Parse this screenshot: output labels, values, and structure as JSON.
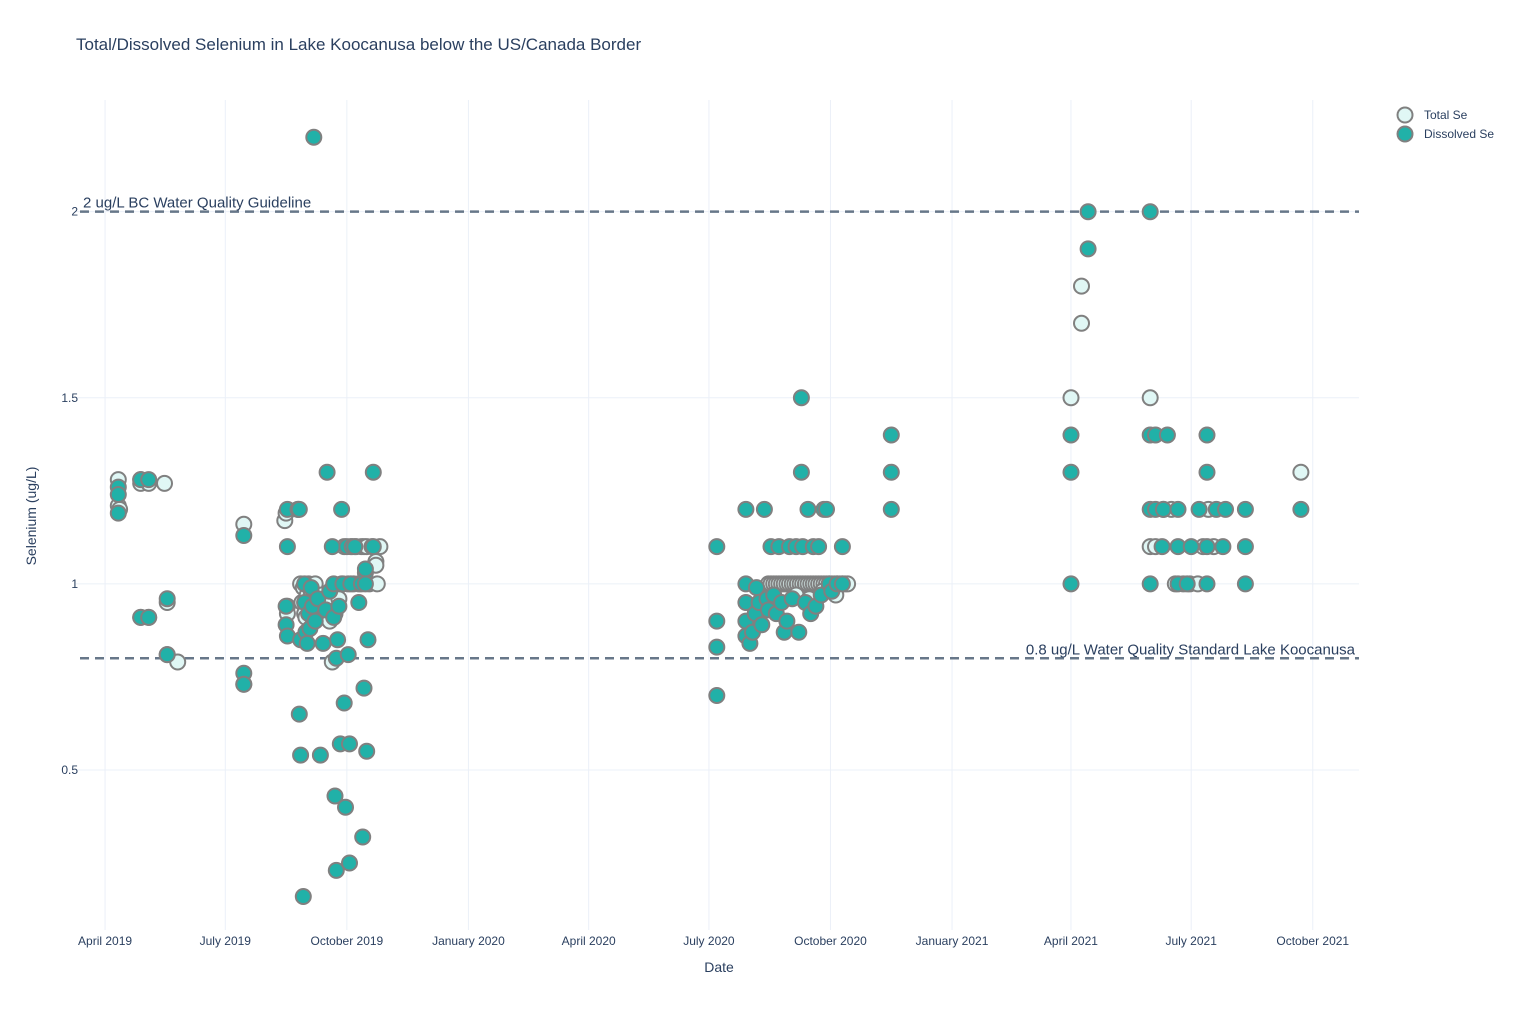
{
  "chart_data": {
    "type": "scatter",
    "title": "Total/Dissolved Selenium in Lake Koocanusa below the US/Canada Border",
    "xlabel": "Date",
    "ylabel": "Selenium (ug/L)",
    "x_range": [
      "2019-03-10",
      "2021-11-05"
    ],
    "y_range": [
      0.07,
      2.3
    ],
    "x_ticks": [
      {
        "date": "2019-04-01",
        "label": "April 2019"
      },
      {
        "date": "2019-07-01",
        "label": "July 2019"
      },
      {
        "date": "2019-10-01",
        "label": "October 2019"
      },
      {
        "date": "2020-01-01",
        "label": "January 2020"
      },
      {
        "date": "2020-04-01",
        "label": "April 2020"
      },
      {
        "date": "2020-07-01",
        "label": "July 2020"
      },
      {
        "date": "2020-10-01",
        "label": "October 2020"
      },
      {
        "date": "2021-01-01",
        "label": "January 2021"
      },
      {
        "date": "2021-04-01",
        "label": "April 2021"
      },
      {
        "date": "2021-07-01",
        "label": "July 2021"
      },
      {
        "date": "2021-10-01",
        "label": "October 2021"
      }
    ],
    "y_ticks": [
      {
        "value": 0.5,
        "label": "0.5"
      },
      {
        "value": 1,
        "label": "1"
      },
      {
        "value": 1.5,
        "label": "1.5"
      },
      {
        "value": 2,
        "label": "2"
      }
    ],
    "grid": true,
    "legend_position": "top-right",
    "reference_lines": [
      {
        "y": 2,
        "label": "2 ug/L BC Water Quality Guideline",
        "label_position": "left"
      },
      {
        "y": 0.8,
        "label": "0.8 ug/L Water Quality Standard Lake Koocanusa",
        "label_position": "right"
      }
    ],
    "series": [
      {
        "name": "Total Se",
        "fill": "#e0f7f5",
        "edge": "#808080",
        "points": [
          [
            "2019-04-11",
            1.28
          ],
          [
            "2019-04-11",
            1.21
          ],
          [
            "2019-04-12",
            1.2
          ],
          [
            "2019-04-28",
            1.28
          ],
          [
            "2019-04-28",
            1.27
          ],
          [
            "2019-04-28",
            0.91
          ],
          [
            "2019-05-04",
            1.27
          ],
          [
            "2019-05-04",
            0.91
          ],
          [
            "2019-05-16",
            1.27
          ],
          [
            "2019-05-18",
            0.95
          ],
          [
            "2019-05-18",
            0.81
          ],
          [
            "2019-05-26",
            0.79
          ],
          [
            "2019-07-15",
            1.16
          ],
          [
            "2019-07-15",
            0.73
          ],
          [
            "2019-08-15",
            1.17
          ],
          [
            "2019-08-16",
            1.19
          ],
          [
            "2019-08-17",
            0.94
          ],
          [
            "2019-08-17",
            0.92
          ],
          [
            "2019-08-25",
            1.2
          ],
          [
            "2019-08-27",
            1.0
          ],
          [
            "2019-08-28",
            0.95
          ],
          [
            "2019-08-29",
            0.99
          ],
          [
            "2019-08-30",
            0.92
          ],
          [
            "2019-08-31",
            0.91
          ],
          [
            "2019-09-01",
            0.97
          ],
          [
            "2019-09-02",
            1.0
          ],
          [
            "2019-09-04",
            0.98
          ],
          [
            "2019-09-05",
            0.93
          ],
          [
            "2019-09-07",
            1.0
          ],
          [
            "2019-09-08",
            0.95
          ],
          [
            "2019-09-10",
            0.92
          ],
          [
            "2019-09-12",
            0.97
          ],
          [
            "2019-09-14",
            0.93
          ],
          [
            "2019-09-16",
            0.96
          ],
          [
            "2019-09-18",
            0.9
          ],
          [
            "2019-09-20",
            0.79
          ],
          [
            "2019-09-22",
            0.92
          ],
          [
            "2019-09-25",
            0.96
          ],
          [
            "2019-09-27",
            1.0
          ],
          [
            "2019-09-29",
            1.1
          ],
          [
            "2019-10-02",
            1.0
          ],
          [
            "2019-10-04",
            1.1
          ],
          [
            "2019-10-06",
            1.0
          ],
          [
            "2019-10-08",
            1.1
          ],
          [
            "2019-10-10",
            1.0
          ],
          [
            "2019-10-12",
            1.1
          ],
          [
            "2019-10-14",
            1.1
          ],
          [
            "2019-10-16",
            1.1
          ],
          [
            "2019-10-18",
            1.0
          ],
          [
            "2019-10-20",
            1.1
          ],
          [
            "2019-10-23",
            1.06
          ],
          [
            "2019-10-23",
            1.05
          ],
          [
            "2019-10-24",
            1.0
          ],
          [
            "2019-10-26",
            1.1
          ],
          [
            "2020-08-15",
            1.0
          ],
          [
            "2020-08-17",
            1.0
          ],
          [
            "2020-08-19",
            1.0
          ],
          [
            "2020-08-21",
            1.0
          ],
          [
            "2020-08-23",
            1.0
          ],
          [
            "2020-08-25",
            1.0
          ],
          [
            "2020-08-27",
            1.0
          ],
          [
            "2020-08-29",
            1.0
          ],
          [
            "2020-08-31",
            1.0
          ],
          [
            "2020-09-02",
            1.0
          ],
          [
            "2020-09-04",
            1.0
          ],
          [
            "2020-09-06",
            1.0
          ],
          [
            "2020-09-08",
            1.0
          ],
          [
            "2020-09-10",
            1.0
          ],
          [
            "2020-09-12",
            1.0
          ],
          [
            "2020-09-14",
            1.0
          ],
          [
            "2020-09-16",
            1.0
          ],
          [
            "2020-09-18",
            1.0
          ],
          [
            "2020-09-20",
            1.0
          ],
          [
            "2020-09-22",
            1.0
          ],
          [
            "2020-09-24",
            1.0
          ],
          [
            "2020-09-26",
            1.0
          ],
          [
            "2020-09-28",
            1.0
          ],
          [
            "2020-09-30",
            1.0
          ],
          [
            "2020-10-02",
            1.0
          ],
          [
            "2020-10-04",
            1.0
          ],
          [
            "2020-10-06",
            1.0
          ],
          [
            "2020-10-08",
            1.0
          ],
          [
            "2020-10-10",
            1.0
          ],
          [
            "2020-10-12",
            1.0
          ],
          [
            "2020-10-14",
            1.0
          ],
          [
            "2020-09-05",
            0.97
          ],
          [
            "2020-09-15",
            0.96
          ],
          [
            "2020-09-25",
            0.98
          ],
          [
            "2020-10-05",
            0.97
          ],
          [
            "2021-04-01",
            1.5
          ],
          [
            "2021-04-09",
            1.8
          ],
          [
            "2021-04-09",
            1.7
          ],
          [
            "2021-05-31",
            1.5
          ],
          [
            "2021-05-31",
            1.1
          ],
          [
            "2021-06-04",
            1.1
          ],
          [
            "2021-06-10",
            1.2
          ],
          [
            "2021-06-16",
            1.2
          ],
          [
            "2021-06-19",
            1.0
          ],
          [
            "2021-06-25",
            1.0
          ],
          [
            "2021-06-30",
            1.0
          ],
          [
            "2021-07-06",
            1.0
          ],
          [
            "2021-07-10",
            1.1
          ],
          [
            "2021-07-14",
            1.2
          ],
          [
            "2021-07-18",
            1.1
          ],
          [
            "2021-09-22",
            1.3
          ]
        ]
      },
      {
        "name": "Dissolved Se",
        "fill": "#21b1a8",
        "edge": "#808080",
        "points": [
          [
            "2019-04-11",
            1.26
          ],
          [
            "2019-04-11",
            1.24
          ],
          [
            "2019-04-11",
            1.19
          ],
          [
            "2019-04-28",
            1.28
          ],
          [
            "2019-04-28",
            0.91
          ],
          [
            "2019-05-04",
            1.28
          ],
          [
            "2019-05-04",
            0.91
          ],
          [
            "2019-05-18",
            0.96
          ],
          [
            "2019-05-18",
            0.81
          ],
          [
            "2019-07-15",
            1.13
          ],
          [
            "2019-07-15",
            0.76
          ],
          [
            "2019-07-15",
            0.73
          ],
          [
            "2019-08-17",
            1.2
          ],
          [
            "2019-08-17",
            1.1
          ],
          [
            "2019-08-16",
            0.94
          ],
          [
            "2019-08-16",
            0.89
          ],
          [
            "2019-08-17",
            0.86
          ],
          [
            "2019-08-25",
            1.2
          ],
          [
            "2019-08-26",
            1.2
          ],
          [
            "2019-08-26",
            0.65
          ],
          [
            "2019-08-27",
            0.85
          ],
          [
            "2019-08-27",
            0.54
          ],
          [
            "2019-08-29",
            0.16
          ],
          [
            "2019-08-30",
            1.0
          ],
          [
            "2019-08-30",
            0.95
          ],
          [
            "2019-08-31",
            0.87
          ],
          [
            "2019-09-01",
            0.84
          ],
          [
            "2019-09-02",
            0.92
          ],
          [
            "2019-09-03",
            0.88
          ],
          [
            "2019-09-04",
            0.99
          ],
          [
            "2019-09-05",
            0.94
          ],
          [
            "2019-09-06",
            2.2
          ],
          [
            "2019-09-07",
            0.9
          ],
          [
            "2019-09-09",
            0.96
          ],
          [
            "2019-09-11",
            0.54
          ],
          [
            "2019-09-13",
            0.84
          ],
          [
            "2019-09-15",
            0.93
          ],
          [
            "2019-09-16",
            1.3
          ],
          [
            "2019-09-18",
            0.98
          ],
          [
            "2019-09-20",
            1.1
          ],
          [
            "2019-09-21",
            1.0
          ],
          [
            "2019-09-21",
            0.91
          ],
          [
            "2019-09-22",
            0.43
          ],
          [
            "2019-09-23",
            0.23
          ],
          [
            "2019-09-23",
            0.8
          ],
          [
            "2019-09-24",
            0.85
          ],
          [
            "2019-09-25",
            0.94
          ],
          [
            "2019-09-26",
            0.57
          ],
          [
            "2019-09-27",
            1.2
          ],
          [
            "2019-09-28",
            1.0
          ],
          [
            "2019-09-29",
            0.68
          ],
          [
            "2019-09-30",
            0.4
          ],
          [
            "2019-10-01",
            1.1
          ],
          [
            "2019-10-02",
            0.81
          ],
          [
            "2019-10-03",
            0.57
          ],
          [
            "2019-10-03",
            0.25
          ],
          [
            "2019-10-04",
            1.0
          ],
          [
            "2019-10-05",
            1.1
          ],
          [
            "2019-10-07",
            1.1
          ],
          [
            "2019-10-10",
            0.95
          ],
          [
            "2019-10-12",
            1.0
          ],
          [
            "2019-10-13",
            0.32
          ],
          [
            "2019-10-14",
            0.72
          ],
          [
            "2019-10-15",
            1.03
          ],
          [
            "2019-10-15",
            1.04
          ],
          [
            "2019-10-16",
            0.55
          ],
          [
            "2019-10-17",
            0.85
          ],
          [
            "2019-10-15",
            1.0
          ],
          [
            "2019-10-21",
            1.3
          ],
          [
            "2019-10-21",
            1.1
          ],
          [
            "2020-07-07",
            1.1
          ],
          [
            "2020-07-07",
            0.9
          ],
          [
            "2020-07-07",
            0.83
          ],
          [
            "2020-07-07",
            0.7
          ],
          [
            "2020-07-29",
            1.2
          ],
          [
            "2020-07-29",
            1.0
          ],
          [
            "2020-07-29",
            0.95
          ],
          [
            "2020-07-29",
            0.9
          ],
          [
            "2020-07-29",
            0.86
          ],
          [
            "2020-08-01",
            0.84
          ],
          [
            "2020-08-03",
            0.87
          ],
          [
            "2020-08-05",
            0.92
          ],
          [
            "2020-08-06",
            0.99
          ],
          [
            "2020-08-08",
            0.95
          ],
          [
            "2020-08-10",
            0.89
          ],
          [
            "2020-08-12",
            1.2
          ],
          [
            "2020-08-14",
            0.96
          ],
          [
            "2020-08-15",
            0.93
          ],
          [
            "2020-08-17",
            1.1
          ],
          [
            "2020-08-19",
            0.97
          ],
          [
            "2020-08-21",
            0.92
          ],
          [
            "2020-08-23",
            1.1
          ],
          [
            "2020-08-25",
            0.95
          ],
          [
            "2020-08-27",
            0.87
          ],
          [
            "2020-08-29",
            0.9
          ],
          [
            "2020-08-31",
            1.1
          ],
          [
            "2020-09-02",
            0.96
          ],
          [
            "2020-09-05",
            1.1
          ],
          [
            "2020-09-07",
            0.87
          ],
          [
            "2020-09-09",
            1.5
          ],
          [
            "2020-09-09",
            1.3
          ],
          [
            "2020-09-10",
            1.1
          ],
          [
            "2020-09-12",
            0.95
          ],
          [
            "2020-09-14",
            1.2
          ],
          [
            "2020-09-16",
            0.92
          ],
          [
            "2020-09-18",
            1.1
          ],
          [
            "2020-09-20",
            0.94
          ],
          [
            "2020-09-22",
            1.1
          ],
          [
            "2020-09-24",
            0.97
          ],
          [
            "2020-09-26",
            1.2
          ],
          [
            "2020-09-28",
            1.2
          ],
          [
            "2020-09-30",
            1.0
          ],
          [
            "2020-10-02",
            0.98
          ],
          [
            "2020-10-06",
            1.0
          ],
          [
            "2020-10-10",
            1.1
          ],
          [
            "2020-10-10",
            1.0
          ],
          [
            "2020-11-16",
            1.4
          ],
          [
            "2020-11-16",
            1.3
          ],
          [
            "2020-11-16",
            1.2
          ],
          [
            "2021-04-01",
            1.4
          ],
          [
            "2021-04-01",
            1.3
          ],
          [
            "2021-04-01",
            1.0
          ],
          [
            "2021-04-14",
            2.0
          ],
          [
            "2021-04-14",
            1.9
          ],
          [
            "2021-05-31",
            2.0
          ],
          [
            "2021-05-31",
            1.4
          ],
          [
            "2021-05-31",
            1.2
          ],
          [
            "2021-05-31",
            1.0
          ],
          [
            "2021-06-04",
            1.4
          ],
          [
            "2021-06-04",
            1.2
          ],
          [
            "2021-06-09",
            1.1
          ],
          [
            "2021-06-10",
            1.2
          ],
          [
            "2021-06-13",
            1.4
          ],
          [
            "2021-06-21",
            1.2
          ],
          [
            "2021-06-21",
            1.1
          ],
          [
            "2021-06-21",
            1.0
          ],
          [
            "2021-06-28",
            1.0
          ],
          [
            "2021-07-01",
            1.1
          ],
          [
            "2021-07-07",
            1.2
          ],
          [
            "2021-07-13",
            1.4
          ],
          [
            "2021-07-13",
            1.3
          ],
          [
            "2021-07-13",
            1.1
          ],
          [
            "2021-07-13",
            1.0
          ],
          [
            "2021-07-20",
            1.2
          ],
          [
            "2021-07-25",
            1.1
          ],
          [
            "2021-07-27",
            1.2
          ],
          [
            "2021-08-11",
            1.2
          ],
          [
            "2021-08-11",
            1.1
          ],
          [
            "2021-08-11",
            1.0
          ],
          [
            "2021-09-22",
            1.2
          ]
        ]
      }
    ]
  }
}
